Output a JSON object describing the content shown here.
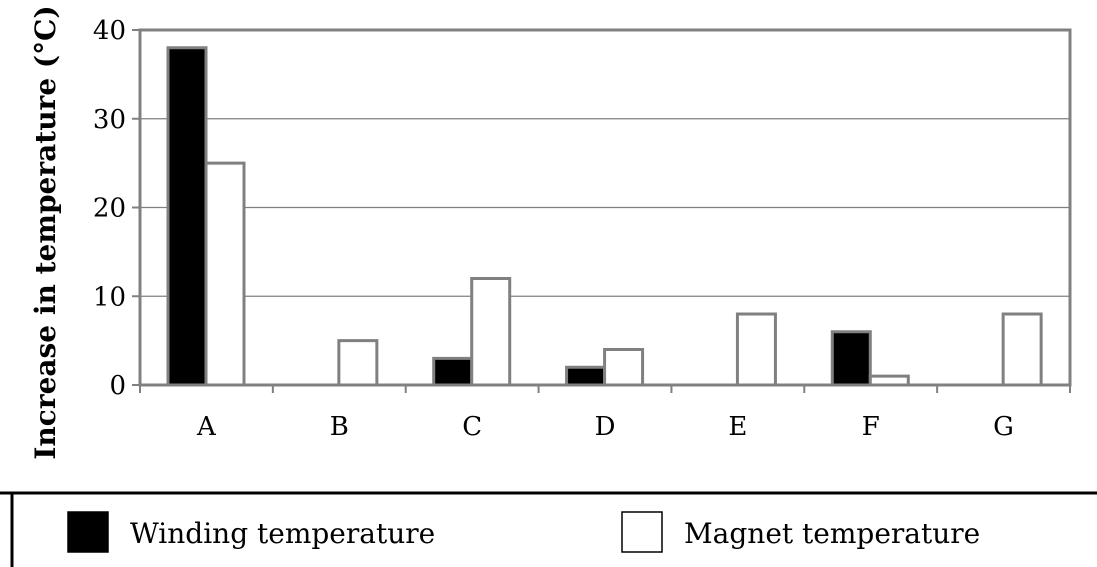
{
  "chart_data": {
    "type": "bar",
    "ylabel": "Increase in temperature (°C)",
    "xlabel": "",
    "categories": [
      "A",
      "B",
      "C",
      "D",
      "E",
      "F",
      "G"
    ],
    "series": [
      {
        "name": "Winding temperature",
        "values": [
          38,
          0,
          3,
          2,
          0,
          6,
          0
        ],
        "color": "#000000"
      },
      {
        "name": "Magnet temperature",
        "values": [
          25,
          5,
          12,
          4,
          8,
          1,
          8
        ],
        "color": "#ffffff"
      }
    ],
    "ylim": [
      0,
      40
    ],
    "yticks": [
      0,
      10,
      20,
      30,
      40
    ],
    "grid": true,
    "legend_position": "bottom",
    "colors": {
      "bar_outline": "#808080",
      "grid": "#808080",
      "frame": "#808080"
    }
  }
}
